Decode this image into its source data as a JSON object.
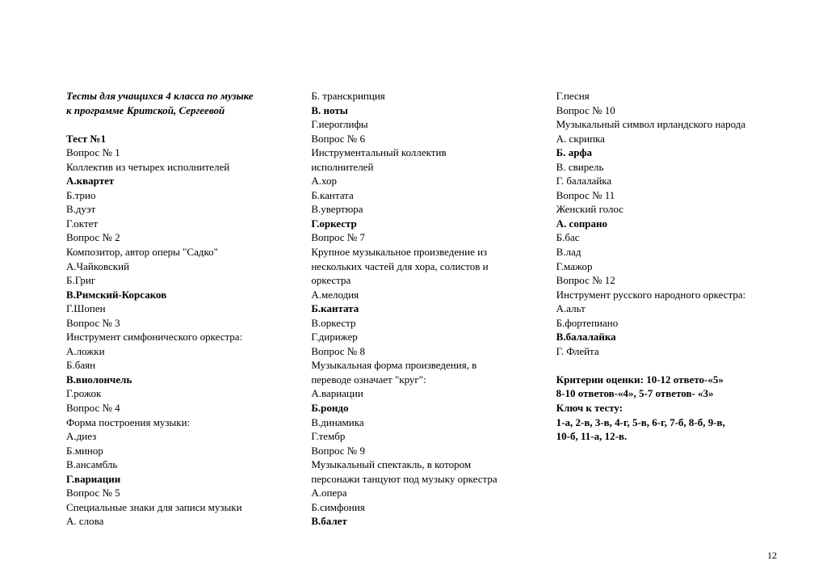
{
  "page_number": "12",
  "font_family": "Times New Roman",
  "font_size_pt": 10,
  "text_color": "#000000",
  "background_color": "#ffffff",
  "lines": [
    {
      "text": "Тесты для учащихся 4 класса по музыке",
      "bold": true,
      "italic": true
    },
    {
      "text": "к программе Критской, Сергеевой",
      "bold": true,
      "italic": true
    },
    {
      "text": " "
    },
    {
      "text": "Тест №1",
      "bold": true
    },
    {
      "text": "Вопрос № 1"
    },
    {
      "text": "Коллектив из четырех исполнителей"
    },
    {
      "text": "А.квартет",
      "bold": true
    },
    {
      "text": "Б.трио"
    },
    {
      "text": "В.дуэт"
    },
    {
      "text": "Г.октет"
    },
    {
      "text": "Вопрос № 2"
    },
    {
      "text": "Композитор, автор оперы \"Садко\""
    },
    {
      "text": "А.Чайковский"
    },
    {
      "text": "Б.Григ"
    },
    {
      "text": "В.Римский-Корсаков",
      "bold": true
    },
    {
      "text": "Г.Шопен"
    },
    {
      "text": "Вопрос № 3"
    },
    {
      "text": "Инструмент симфонического оркестра:"
    },
    {
      "text": "А.ложки"
    },
    {
      "text": "Б.баян"
    },
    {
      "text": "В.виолончель",
      "bold": true
    },
    {
      "text": "Г.рожок"
    },
    {
      "text": "Вопрос № 4"
    },
    {
      "text": "Форма построения музыки:"
    },
    {
      "text": "А.диез"
    },
    {
      "text": "Б.минор"
    },
    {
      "text": "В.ансамбль"
    },
    {
      "text": "Г.вариации",
      "bold": true
    },
    {
      "text": "Вопрос № 5"
    },
    {
      "text": "Специальные знаки для записи музыки"
    },
    {
      "text": "А. слова"
    },
    {
      "text": "Б. транскрипция"
    },
    {
      "text": "В. ноты",
      "bold": true
    },
    {
      "text": "Г.иероглифы"
    },
    {
      "text": "Вопрос № 6"
    },
    {
      "text": "Инструментальный коллектив"
    },
    {
      "text": "исполнителей"
    },
    {
      "text": "А.хор"
    },
    {
      "text": " Б.кантата"
    },
    {
      "text": " В.увертюра"
    },
    {
      "text": " Г.оркестр",
      "bold": true
    },
    {
      "text": "Вопрос № 7"
    },
    {
      "text": "Крупное музыкальное произведение из"
    },
    {
      "text": "нескольких частей для хора, солистов и"
    },
    {
      "text": "оркестра"
    },
    {
      "text": "А.мелодия"
    },
    {
      "text": " Б.кантата",
      "bold": true
    },
    {
      "text": " В.оркестр"
    },
    {
      "text": " Г.дирижер"
    },
    {
      "text": "Вопрос № 8"
    },
    {
      "text": "Музыкальная форма произведения, в"
    },
    {
      "text": "переводе означает \"круг\":"
    },
    {
      "text": " А.вариации"
    },
    {
      "text": " Б.рондо",
      "bold": true
    },
    {
      "text": " В.динамика"
    },
    {
      "text": " Г.тембр"
    },
    {
      "text": "Вопрос № 9"
    },
    {
      "text": "Музыкальный спектакль, в котором"
    },
    {
      "text": "персонажи танцуют под музыку оркестра"
    },
    {
      "text": " А.опера"
    },
    {
      "text": " Б.симфония"
    },
    {
      "text": " В.балет",
      "bold": true
    },
    {
      "text": " Г.песня"
    },
    {
      "text": "Вопрос № 10"
    },
    {
      "text": "Музыкальный символ ирландского народа"
    },
    {
      "text": "А. скрипка"
    },
    {
      "text": "Б. арфа",
      "bold": true
    },
    {
      "text": "В. свирель"
    },
    {
      "text": "Г. балалайка"
    },
    {
      "text": "Вопрос № 11"
    },
    {
      "text": "Женский голос"
    },
    {
      "text": "А. сопрано",
      "bold": true
    },
    {
      "text": "Б.бас"
    },
    {
      "text": "В.лад"
    },
    {
      "text": "Г.мажор"
    },
    {
      "text": "Вопрос № 12"
    },
    {
      "text": "Инструмент русского народного оркестра:"
    },
    {
      "text": "А.альт"
    },
    {
      "text": "Б.фортепиано"
    },
    {
      "text": "В.балалайка",
      "bold": true
    },
    {
      "text": "Г. Флейта"
    },
    {
      "text": " "
    },
    {
      "text": "Критерии оценки: 10-12 ответо-«5»",
      "bold": true
    },
    {
      "text": "8-10 ответов-«4», 5-7 ответов- «3»",
      "bold": true
    },
    {
      "text": "Ключ к тесту:",
      "bold": true
    },
    {
      "text": "1-а, 2-в, 3-в, 4-г, 5-в, 6-г, 7-б, 8-б, 9-в,",
      "bold": true
    },
    {
      "text": "10-б, 11-а, 12-в.",
      "bold": true
    }
  ]
}
